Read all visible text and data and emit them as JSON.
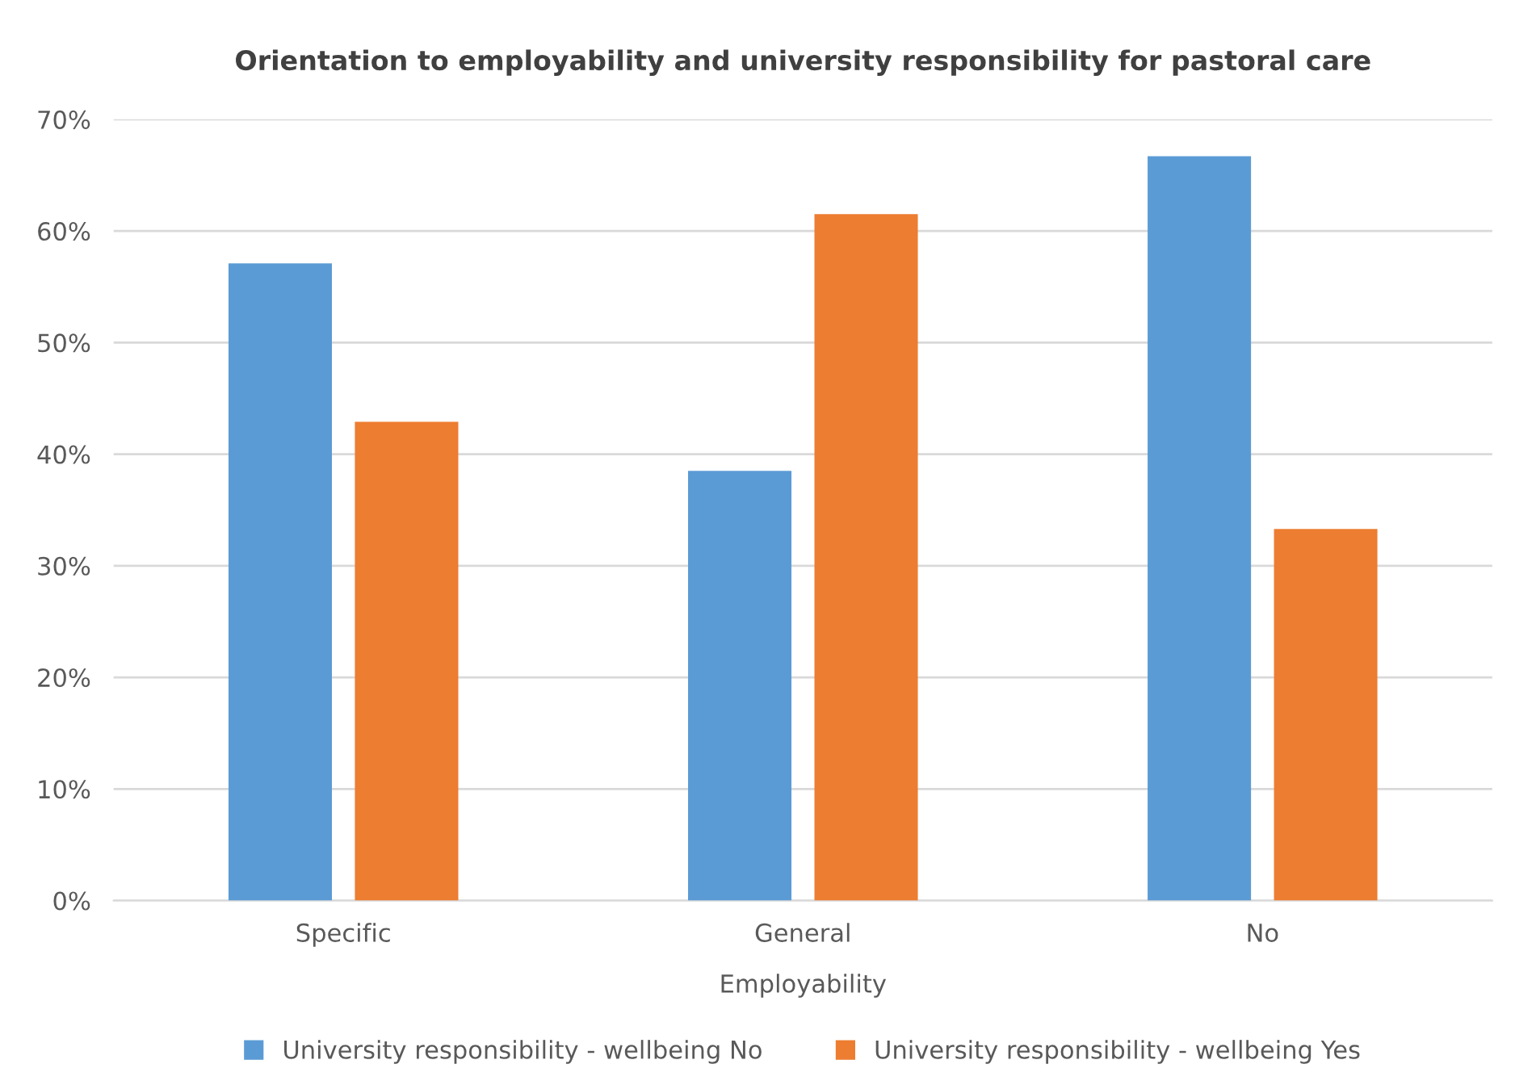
{
  "chart_data": {
    "type": "bar",
    "title": "Orientation to employability and university responsibility for pastoral care",
    "xlabel": "Employability",
    "categories": [
      "Specific",
      "General",
      "No"
    ],
    "series": [
      {
        "name": "University responsibility - wellbeing No",
        "color": "#5b9bd5",
        "values": [
          57.1,
          38.5,
          66.7
        ]
      },
      {
        "name": "University responsibility - wellbeing Yes",
        "color": "#ed7d31",
        "values": [
          42.9,
          61.5,
          33.3
        ]
      }
    ],
    "ylim": [
      0,
      70
    ],
    "yticks": [
      {
        "value": 0,
        "label": "0%"
      },
      {
        "value": 10,
        "label": "10%"
      },
      {
        "value": 20,
        "label": "20%"
      },
      {
        "value": 30,
        "label": "30%"
      },
      {
        "value": 40,
        "label": "40%"
      },
      {
        "value": 50,
        "label": "50%"
      },
      {
        "value": 60,
        "label": "60%"
      },
      {
        "value": 70,
        "label": "70%"
      }
    ],
    "grid": "y",
    "legend": "bottom"
  }
}
